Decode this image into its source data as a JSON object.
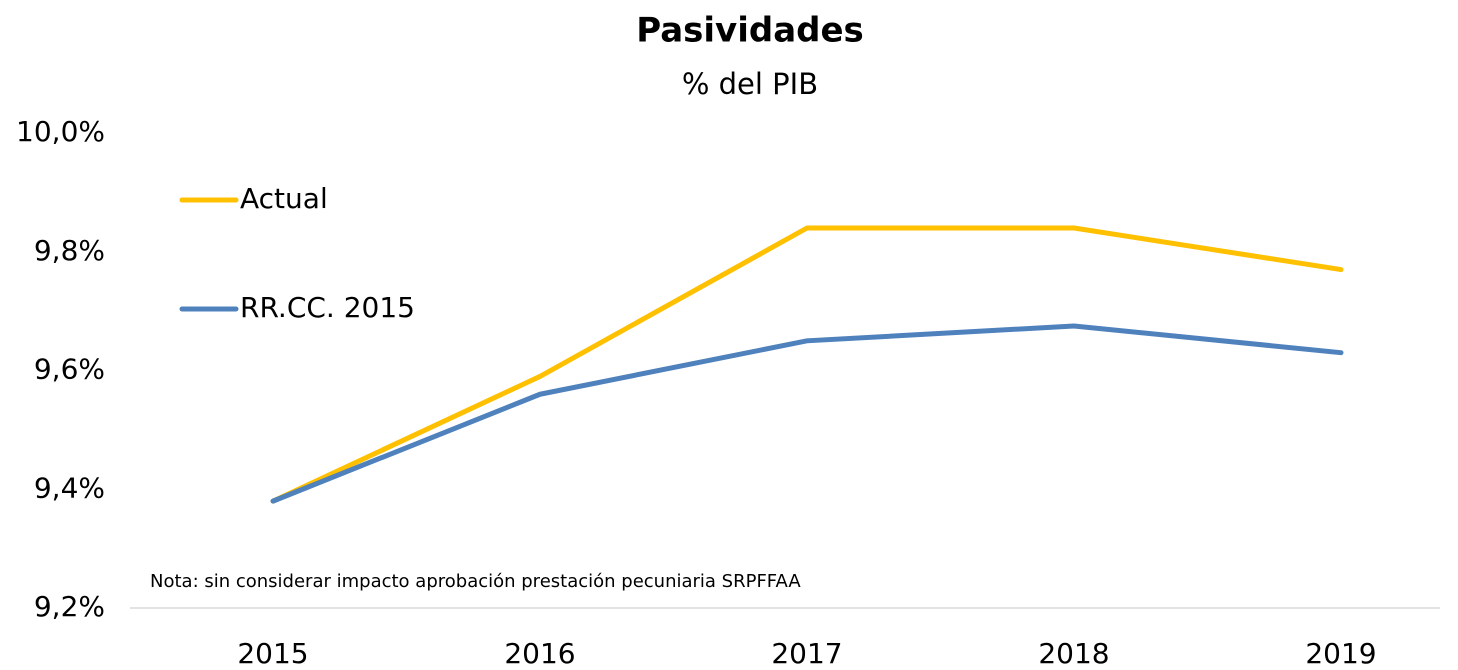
{
  "chart_data": {
    "type": "line",
    "title": "Pasividades",
    "subtitle": "% del PIB",
    "annotation": "Nota: sin considerar impacto aprobación prestación pecuniaria SRPFFAA",
    "categories": [
      "2015",
      "2016",
      "2017",
      "2018",
      "2019"
    ],
    "series": [
      {
        "name": "Actual",
        "color": "#ffc000",
        "values": [
          9.38,
          9.59,
          9.84,
          9.84,
          9.77
        ]
      },
      {
        "name": "RR.CC. 2015",
        "color": "#4f81bd",
        "values": [
          9.38,
          9.56,
          9.65,
          9.675,
          9.63
        ]
      }
    ],
    "ylim": [
      9.2,
      10.0
    ],
    "yticks": [
      {
        "value": 9.2,
        "label": "9,2%"
      },
      {
        "value": 9.4,
        "label": "9,4%"
      },
      {
        "value": 9.6,
        "label": "9,6%"
      },
      {
        "value": 9.8,
        "label": "9,8%"
      },
      {
        "value": 10.0,
        "label": "10,0%"
      }
    ],
    "grid": false,
    "legend": "upper left"
  }
}
